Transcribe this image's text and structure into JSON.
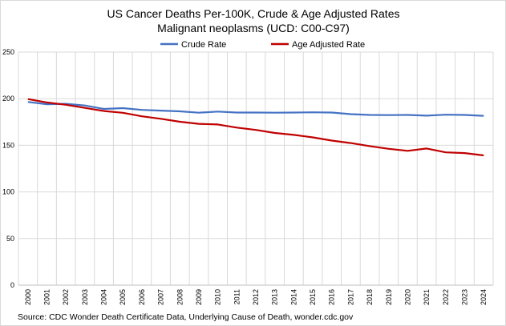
{
  "chart_data": {
    "type": "line",
    "title": "US Cancer Deaths Per-100K, Crude & Age Adjusted Rates",
    "subtitle": "Malignant neoplasms (UCD: C00-C97)",
    "xlabel": "",
    "ylabel": "",
    "ylim": [
      0,
      250
    ],
    "yticks": [
      0,
      50,
      100,
      150,
      200,
      250
    ],
    "grid": true,
    "legend_position": "top",
    "categories": [
      "2000",
      "2001",
      "2002",
      "2003",
      "2004",
      "2005",
      "2006",
      "2007",
      "2008",
      "2009",
      "2010",
      "2011",
      "2012",
      "2013",
      "2014",
      "2015",
      "2016",
      "2017",
      "2018",
      "2019",
      "2020",
      "2021",
      "2022",
      "2023",
      "2024"
    ],
    "series": [
      {
        "name": "Crude Rate",
        "color": "#4472C4",
        "values": [
          196.5,
          194.1,
          194.5,
          192.7,
          189.0,
          189.9,
          188.0,
          187.2,
          186.4,
          185.0,
          186.2,
          185.1,
          185.1,
          185.0,
          185.1,
          185.4,
          185.1,
          183.4,
          182.6,
          182.4,
          182.6,
          181.8,
          182.8,
          182.6,
          181.6
        ]
      },
      {
        "name": "Age Adjusted Rate",
        "color": "#C00000",
        "values": [
          199.6,
          196.0,
          193.5,
          190.1,
          186.8,
          184.9,
          181.1,
          178.4,
          175.3,
          173.0,
          172.3,
          169.0,
          166.5,
          163.2,
          161.2,
          158.5,
          155.1,
          152.4,
          149.1,
          146.2,
          144.1,
          146.6,
          142.4,
          141.7,
          139.2
        ]
      }
    ],
    "source": "Source: CDC Wonder Death Certificate Data, Underlying Cause of Death, wonder.cdc.gov"
  }
}
